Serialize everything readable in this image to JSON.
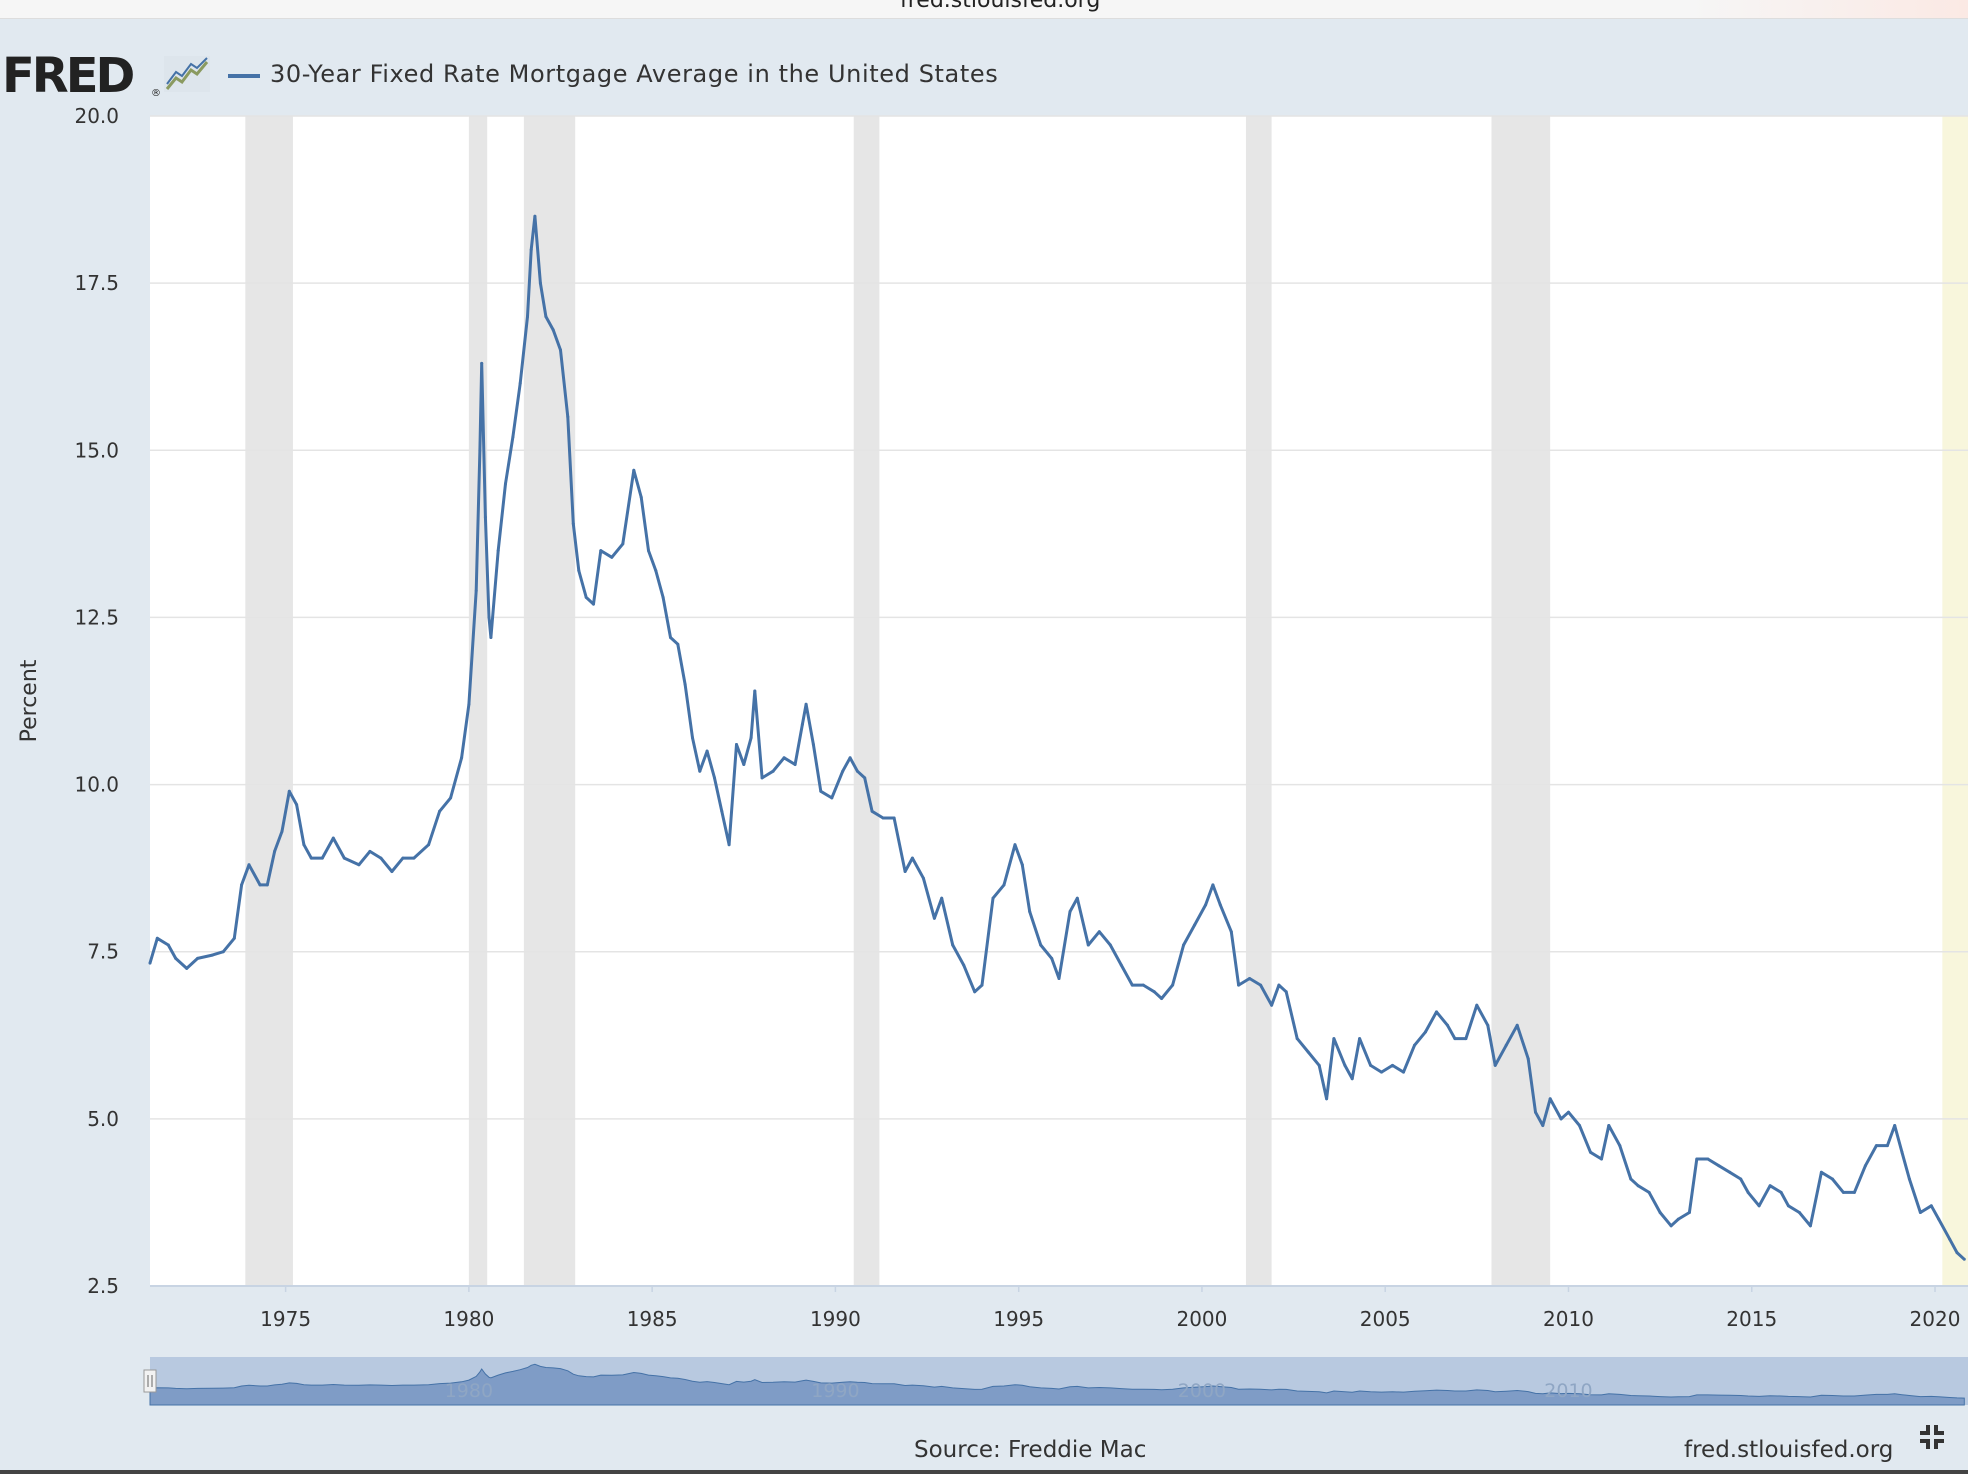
{
  "window": {
    "url": "fred.stlouisfed.org"
  },
  "header": {
    "logo_text": "FRED",
    "logo_reg": "®",
    "logo_graph_icon": "line-graph-icon",
    "title": "30-Year Fixed Rate Mortgage Average in the United States"
  },
  "footer": {
    "source": "Source: Freddie Mac",
    "link": "fred.stlouisfed.org",
    "fullscreen_icon": "fullscreen-exit-icon"
  },
  "colors": {
    "series": "#4572a7",
    "recession": "#e6e6e6",
    "navigator_fill": "#7f9cc6",
    "navigator_bg": "#b8c9e0",
    "highlight": "#f8f6dc",
    "background": "#e1e9f0"
  },
  "chart_data": {
    "type": "line",
    "title": "30-Year Fixed Rate Mortgage Average in the United States",
    "xlabel": "",
    "ylabel": "Percent",
    "xlim": [
      1971.3,
      2020.9
    ],
    "ylim": [
      2.5,
      20.0
    ],
    "y_ticks": [
      "2.5",
      "5.0",
      "7.5",
      "10.0",
      "12.5",
      "15.0",
      "17.5",
      "20.0"
    ],
    "x_ticks": [
      "1975",
      "1980",
      "1985",
      "1990",
      "1995",
      "2000",
      "2005",
      "2010",
      "2015",
      "2020"
    ],
    "navigator_labels": [
      "1980",
      "1990",
      "2000",
      "2010",
      "2..."
    ],
    "grid": true,
    "legend": "top-left",
    "recessions": [
      [
        1973.9,
        1975.2
      ],
      [
        1980.0,
        1980.5
      ],
      [
        1981.5,
        1982.9
      ],
      [
        1990.5,
        1991.2
      ],
      [
        2001.2,
        2001.9
      ],
      [
        2007.9,
        2009.5
      ]
    ],
    "highlight_range": [
      2020.2,
      2020.9
    ],
    "series": [
      {
        "name": "30-Year Fixed Rate Mortgage Average in the United States",
        "points": [
          [
            1971.3,
            7.33
          ],
          [
            1971.5,
            7.7
          ],
          [
            1971.8,
            7.6
          ],
          [
            1972.0,
            7.4
          ],
          [
            1972.3,
            7.25
          ],
          [
            1972.6,
            7.4
          ],
          [
            1973.0,
            7.45
          ],
          [
            1973.3,
            7.5
          ],
          [
            1973.6,
            7.7
          ],
          [
            1973.8,
            8.5
          ],
          [
            1974.0,
            8.8
          ],
          [
            1974.3,
            8.5
          ],
          [
            1974.5,
            8.5
          ],
          [
            1974.7,
            9.0
          ],
          [
            1974.9,
            9.3
          ],
          [
            1975.1,
            9.9
          ],
          [
            1975.3,
            9.7
          ],
          [
            1975.5,
            9.1
          ],
          [
            1975.7,
            8.9
          ],
          [
            1976.0,
            8.9
          ],
          [
            1976.3,
            9.2
          ],
          [
            1976.6,
            8.9
          ],
          [
            1977.0,
            8.8
          ],
          [
            1977.3,
            9.0
          ],
          [
            1977.6,
            8.9
          ],
          [
            1977.9,
            8.7
          ],
          [
            1978.2,
            8.9
          ],
          [
            1978.5,
            8.9
          ],
          [
            1978.9,
            9.1
          ],
          [
            1979.2,
            9.6
          ],
          [
            1979.5,
            9.8
          ],
          [
            1979.8,
            10.4
          ],
          [
            1980.0,
            11.2
          ],
          [
            1980.2,
            12.9
          ],
          [
            1980.3,
            15.0
          ],
          [
            1980.35,
            16.3
          ],
          [
            1980.45,
            14.0
          ],
          [
            1980.55,
            12.5
          ],
          [
            1980.6,
            12.2
          ],
          [
            1980.8,
            13.5
          ],
          [
            1981.0,
            14.5
          ],
          [
            1981.2,
            15.2
          ],
          [
            1981.4,
            16.0
          ],
          [
            1981.6,
            17.0
          ],
          [
            1981.7,
            18.0
          ],
          [
            1981.8,
            18.5
          ],
          [
            1981.95,
            17.5
          ],
          [
            1982.1,
            17.0
          ],
          [
            1982.3,
            16.8
          ],
          [
            1982.5,
            16.5
          ],
          [
            1982.7,
            15.5
          ],
          [
            1982.85,
            13.9
          ],
          [
            1983.0,
            13.2
          ],
          [
            1983.2,
            12.8
          ],
          [
            1983.4,
            12.7
          ],
          [
            1983.6,
            13.5
          ],
          [
            1983.9,
            13.4
          ],
          [
            1984.2,
            13.6
          ],
          [
            1984.5,
            14.7
          ],
          [
            1984.7,
            14.3
          ],
          [
            1984.9,
            13.5
          ],
          [
            1985.1,
            13.2
          ],
          [
            1985.3,
            12.8
          ],
          [
            1985.5,
            12.2
          ],
          [
            1985.7,
            12.1
          ],
          [
            1985.9,
            11.5
          ],
          [
            1986.1,
            10.7
          ],
          [
            1986.3,
            10.2
          ],
          [
            1986.5,
            10.5
          ],
          [
            1986.7,
            10.1
          ],
          [
            1986.9,
            9.6
          ],
          [
            1987.1,
            9.1
          ],
          [
            1987.3,
            10.6
          ],
          [
            1987.5,
            10.3
          ],
          [
            1987.7,
            10.7
          ],
          [
            1987.8,
            11.4
          ],
          [
            1988.0,
            10.1
          ],
          [
            1988.3,
            10.2
          ],
          [
            1988.6,
            10.4
          ],
          [
            1988.9,
            10.3
          ],
          [
            1989.1,
            10.9
          ],
          [
            1989.2,
            11.2
          ],
          [
            1989.4,
            10.6
          ],
          [
            1989.6,
            9.9
          ],
          [
            1989.9,
            9.8
          ],
          [
            1990.2,
            10.2
          ],
          [
            1990.4,
            10.4
          ],
          [
            1990.6,
            10.2
          ],
          [
            1990.8,
            10.1
          ],
          [
            1991.0,
            9.6
          ],
          [
            1991.3,
            9.5
          ],
          [
            1991.6,
            9.5
          ],
          [
            1991.9,
            8.7
          ],
          [
            1992.1,
            8.9
          ],
          [
            1992.4,
            8.6
          ],
          [
            1992.7,
            8.0
          ],
          [
            1992.9,
            8.3
          ],
          [
            1993.2,
            7.6
          ],
          [
            1993.5,
            7.3
          ],
          [
            1993.8,
            6.9
          ],
          [
            1994.0,
            7.0
          ],
          [
            1994.3,
            8.3
          ],
          [
            1994.6,
            8.5
          ],
          [
            1994.9,
            9.1
          ],
          [
            1995.1,
            8.8
          ],
          [
            1995.3,
            8.1
          ],
          [
            1995.6,
            7.6
          ],
          [
            1995.9,
            7.4
          ],
          [
            1996.1,
            7.1
          ],
          [
            1996.4,
            8.1
          ],
          [
            1996.6,
            8.3
          ],
          [
            1996.9,
            7.6
          ],
          [
            1997.2,
            7.8
          ],
          [
            1997.5,
            7.6
          ],
          [
            1997.8,
            7.3
          ],
          [
            1998.1,
            7.0
          ],
          [
            1998.4,
            7.0
          ],
          [
            1998.7,
            6.9
          ],
          [
            1998.9,
            6.8
          ],
          [
            1999.2,
            7.0
          ],
          [
            1999.5,
            7.6
          ],
          [
            1999.8,
            7.9
          ],
          [
            2000.1,
            8.2
          ],
          [
            2000.3,
            8.5
          ],
          [
            2000.5,
            8.2
          ],
          [
            2000.8,
            7.8
          ],
          [
            2001.0,
            7.0
          ],
          [
            2001.3,
            7.1
          ],
          [
            2001.6,
            7.0
          ],
          [
            2001.9,
            6.7
          ],
          [
            2002.1,
            7.0
          ],
          [
            2002.3,
            6.9
          ],
          [
            2002.6,
            6.2
          ],
          [
            2002.9,
            6.0
          ],
          [
            2003.2,
            5.8
          ],
          [
            2003.4,
            5.3
          ],
          [
            2003.6,
            6.2
          ],
          [
            2003.9,
            5.8
          ],
          [
            2004.1,
            5.6
          ],
          [
            2004.3,
            6.2
          ],
          [
            2004.6,
            5.8
          ],
          [
            2004.9,
            5.7
          ],
          [
            2005.2,
            5.8
          ],
          [
            2005.5,
            5.7
          ],
          [
            2005.8,
            6.1
          ],
          [
            2006.1,
            6.3
          ],
          [
            2006.4,
            6.6
          ],
          [
            2006.7,
            6.4
          ],
          [
            2006.9,
            6.2
          ],
          [
            2007.2,
            6.2
          ],
          [
            2007.5,
            6.7
          ],
          [
            2007.8,
            6.4
          ],
          [
            2008.0,
            5.8
          ],
          [
            2008.3,
            6.1
          ],
          [
            2008.6,
            6.4
          ],
          [
            2008.9,
            5.9
          ],
          [
            2009.1,
            5.1
          ],
          [
            2009.3,
            4.9
          ],
          [
            2009.5,
            5.3
          ],
          [
            2009.8,
            5.0
          ],
          [
            2010.0,
            5.1
          ],
          [
            2010.3,
            4.9
          ],
          [
            2010.6,
            4.5
          ],
          [
            2010.9,
            4.4
          ],
          [
            2011.1,
            4.9
          ],
          [
            2011.4,
            4.6
          ],
          [
            2011.7,
            4.1
          ],
          [
            2011.9,
            4.0
          ],
          [
            2012.2,
            3.9
          ],
          [
            2012.5,
            3.6
          ],
          [
            2012.8,
            3.4
          ],
          [
            2013.0,
            3.5
          ],
          [
            2013.3,
            3.6
          ],
          [
            2013.5,
            4.4
          ],
          [
            2013.8,
            4.4
          ],
          [
            2014.1,
            4.3
          ],
          [
            2014.4,
            4.2
          ],
          [
            2014.7,
            4.1
          ],
          [
            2014.9,
            3.9
          ],
          [
            2015.2,
            3.7
          ],
          [
            2015.5,
            4.0
          ],
          [
            2015.8,
            3.9
          ],
          [
            2016.0,
            3.7
          ],
          [
            2016.3,
            3.6
          ],
          [
            2016.6,
            3.4
          ],
          [
            2016.9,
            4.2
          ],
          [
            2017.2,
            4.1
          ],
          [
            2017.5,
            3.9
          ],
          [
            2017.8,
            3.9
          ],
          [
            2018.1,
            4.3
          ],
          [
            2018.4,
            4.6
          ],
          [
            2018.7,
            4.6
          ],
          [
            2018.9,
            4.9
          ],
          [
            2019.1,
            4.5
          ],
          [
            2019.3,
            4.1
          ],
          [
            2019.6,
            3.6
          ],
          [
            2019.9,
            3.7
          ],
          [
            2020.1,
            3.5
          ],
          [
            2020.4,
            3.2
          ],
          [
            2020.6,
            3.0
          ],
          [
            2020.8,
            2.9
          ]
        ]
      }
    ]
  }
}
